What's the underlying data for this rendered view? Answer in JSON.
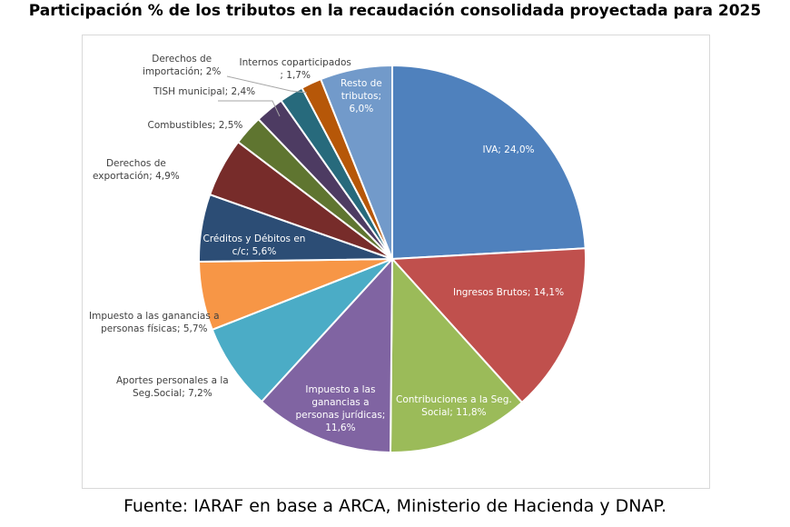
{
  "chart_data": {
    "type": "pie",
    "title": "Participación % de los tributos en la recaudación consolidada proyectada para 2025",
    "source": "Fuente: IARAF en base a ARCA, Ministerio de Hacienda y DNAP.",
    "slices": [
      {
        "name": "IVA",
        "value": 24.0,
        "label": "IVA; 24,0%",
        "color": "#4f81bd"
      },
      {
        "name": "Ingresos Brutos",
        "value": 14.1,
        "label": "Ingresos Brutos; 14,1%",
        "color": "#c0504d"
      },
      {
        "name": "Contribuciones a la Seg. Social",
        "value": 11.8,
        "label": "Contribuciones a la Seg.\nSocial; 11,8%",
        "color": "#9bbb59"
      },
      {
        "name": "Impuesto a las ganancias a personas jurídicas",
        "value": 11.6,
        "label": "Impuesto a las\nganancias a\npersonas jurídicas;\n11,6%",
        "color": "#8064a2"
      },
      {
        "name": "Aportes personales a la Seg.Social",
        "value": 7.2,
        "label": "Aportes personales a la\nSeg.Social; 7,2%",
        "color": "#4bacc6"
      },
      {
        "name": "Impuesto a las ganancias a personas físicas",
        "value": 5.7,
        "label": "Impuesto a las ganancias a\npersonas físicas; 5,7%",
        "color": "#f79646"
      },
      {
        "name": "Créditos y Débitos en c/c",
        "value": 5.6,
        "label": "Créditos y Débitos en\nc/c; 5,6%",
        "color": "#2c4d75"
      },
      {
        "name": "Derechos de exportación",
        "value": 4.9,
        "label": "Derechos de\nexportación; 4,9%",
        "color": "#772c2a"
      },
      {
        "name": "Combustibles",
        "value": 2.5,
        "label": "Combustibles; 2,5%",
        "color": "#5f7530"
      },
      {
        "name": "TISH municipal",
        "value": 2.4,
        "label": "TISH municipal; 2,4%",
        "color": "#4d3b62"
      },
      {
        "name": "Derechos de importación",
        "value": 2.0,
        "label": "Derechos de\nimportación; 2%",
        "color": "#276a7c"
      },
      {
        "name": "Internos coparticipados",
        "value": 1.7,
        "label": "Internos coparticipados\n; 1,7%",
        "color": "#b65708"
      },
      {
        "name": "Resto de tributos",
        "value": 6.0,
        "label": "Resto de\ntributos;\n6,0%",
        "color": "#729aca"
      }
    ]
  }
}
